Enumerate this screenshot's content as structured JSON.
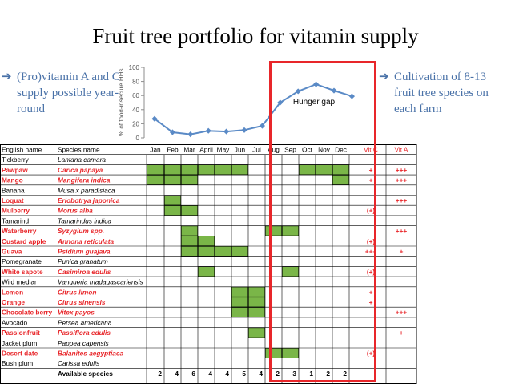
{
  "title": "Fruit tree portfolio for vitamin supply",
  "bullets": {
    "left": {
      "icon": "right-arrow-icon",
      "text": "(Pro)vitamin A and C supply possible year-round"
    },
    "right": {
      "icon": "right-arrow-icon",
      "text": "Cultivation of 8-13 fruit tree species on each farm"
    }
  },
  "colors": {
    "accent": "#4a72a8",
    "highlight": "#e8262a",
    "season": "#7ab648",
    "line": "#5a8ac6"
  },
  "chart_data": [
    {
      "type": "line",
      "x": [
        "Jan",
        "Feb",
        "Mar",
        "April",
        "May",
        "Jun",
        "Jul",
        "Aug",
        "Sep",
        "Oct",
        "Nov",
        "Dec"
      ],
      "values": [
        27,
        8,
        5,
        10,
        9,
        11,
        17,
        50,
        66,
        76,
        67,
        59
      ],
      "ylabel": "% of food-insecure HHs",
      "ylim": [
        0,
        100
      ],
      "yticks": [
        "0",
        "20",
        "40",
        "60",
        "80",
        "100"
      ],
      "annotation": "Hunger gap",
      "grid": false
    },
    {
      "type": "table",
      "columns": {
        "english": "English name",
        "species": "Species name",
        "months": [
          "Jan",
          "Feb",
          "Mar",
          "April",
          "May",
          "Jun",
          "Jul",
          "Aug",
          "Sep",
          "Oct",
          "Nov",
          "Dec"
        ],
        "vitc": "Vit C",
        "vita": "Vit A"
      },
      "rows": [
        {
          "english": "Tickberry",
          "species": "Lantana camara",
          "red": false,
          "months": [],
          "vitc": "",
          "vita": ""
        },
        {
          "english": "Pawpaw",
          "species": "Carica papaya",
          "red": true,
          "months": [
            1,
            2,
            3,
            4,
            5,
            6,
            10,
            11,
            12
          ],
          "vitc": "+",
          "vita": "+++"
        },
        {
          "english": "Mango",
          "species": "Mangifera indica",
          "red": true,
          "months": [
            1,
            2,
            3,
            12
          ],
          "vitc": "+",
          "vita": "+++"
        },
        {
          "english": "Banana",
          "species": "Musa x paradisiaca",
          "red": false,
          "months": [],
          "vitc": "",
          "vita": ""
        },
        {
          "english": "Loquat",
          "species": "Eriobotrya japonica",
          "red": true,
          "months": [
            2
          ],
          "vitc": "",
          "vita": "+++"
        },
        {
          "english": "Mulberry",
          "species": "Morus alba",
          "red": true,
          "months": [
            2,
            3
          ],
          "vitc": "(+)",
          "vita": ""
        },
        {
          "english": "Tamarind",
          "species": "Tamarindus indica",
          "red": false,
          "months": [],
          "vitc": "",
          "vita": ""
        },
        {
          "english": "Waterberry",
          "species": "Syzygium spp.",
          "red": true,
          "months": [
            3,
            8,
            9
          ],
          "vitc": "",
          "vita": "+++"
        },
        {
          "english": "Custard apple",
          "species": "Annona reticulata",
          "red": true,
          "months": [
            3,
            4
          ],
          "vitc": "(+)",
          "vita": ""
        },
        {
          "english": "Guava",
          "species": "Psidium guajava",
          "red": true,
          "months": [
            3,
            4,
            5,
            6
          ],
          "vitc": "+++",
          "vita": "+"
        },
        {
          "english": "Pomegranate",
          "species": "Punica granatum",
          "red": false,
          "months": [],
          "vitc": "",
          "vita": ""
        },
        {
          "english": "White sapote",
          "species": "Casimiroa edulis",
          "red": true,
          "months": [
            4,
            9
          ],
          "vitc": "(+)",
          "vita": ""
        },
        {
          "english": "Wild medlar",
          "species": "Vangueria madagascariensis",
          "red": false,
          "months": [],
          "vitc": "",
          "vita": ""
        },
        {
          "english": "Lemon",
          "species": "Citrus limon",
          "red": true,
          "months": [
            6,
            7
          ],
          "vitc": "+",
          "vita": ""
        },
        {
          "english": "Orange",
          "species": "Citrus sinensis",
          "red": true,
          "months": [
            6,
            7
          ],
          "vitc": "+",
          "vita": ""
        },
        {
          "english": "Chocolate berry",
          "species": "Vitex payos",
          "red": true,
          "months": [
            6,
            7
          ],
          "vitc": "",
          "vita": "+++"
        },
        {
          "english": "Avocado",
          "species": "Persea americana",
          "red": false,
          "months": [],
          "vitc": "",
          "vita": ""
        },
        {
          "english": "Passionfruit",
          "species": "Passiflora edulis",
          "red": true,
          "months": [
            7
          ],
          "vitc": "",
          "vita": "+"
        },
        {
          "english": "Jacket plum",
          "species": "Pappea capensis",
          "red": false,
          "months": [],
          "vitc": "",
          "vita": ""
        },
        {
          "english": "Desert date",
          "species": "Balanites aegyptiaca",
          "red": true,
          "months": [
            8,
            9
          ],
          "vitc": "(+)",
          "vita": ""
        },
        {
          "english": "Bush plum",
          "species": "Carissa edulis",
          "red": false,
          "months": [],
          "vitc": "",
          "vita": ""
        }
      ],
      "footer": {
        "label": "Available species",
        "counts": [
          "2",
          "4",
          "6",
          "4",
          "4",
          "5",
          "4",
          "2",
          "3",
          "1",
          "2",
          "2"
        ]
      }
    }
  ]
}
